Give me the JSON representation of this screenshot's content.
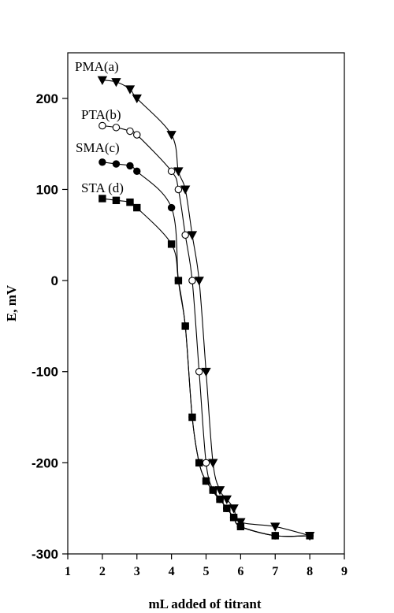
{
  "chart_data": {
    "type": "scatter",
    "xlabel": "mL added of titrant",
    "ylabel": "E, mV",
    "xlim": [
      1,
      9
    ],
    "ylim": [
      -300,
      250
    ],
    "x_ticks": [
      1,
      2,
      3,
      4,
      5,
      6,
      7,
      8,
      9
    ],
    "y_ticks": [
      -300,
      -200,
      -100,
      0,
      100,
      200
    ],
    "grid": false,
    "series": [
      {
        "name": "PMA(a)",
        "marker": "triangle-down-filled",
        "color": "#000000",
        "x": [
          2.0,
          2.4,
          2.8,
          3.0,
          4.0,
          4.2,
          4.4,
          4.6,
          4.8,
          5.0,
          5.2,
          5.4,
          5.6,
          5.8,
          6.0,
          7.0,
          8.0
        ],
        "y": [
          220,
          218,
          210,
          200,
          160,
          120,
          100,
          50,
          0,
          -100,
          -200,
          -230,
          -240,
          -250,
          -265,
          -270,
          -280
        ]
      },
      {
        "name": "PTA(b)",
        "marker": "circle-open",
        "color": "#000000",
        "x": [
          2.0,
          2.4,
          2.8,
          3.0,
          4.0,
          4.2,
          4.4,
          4.6,
          4.8,
          5.0,
          5.2,
          5.4,
          5.6,
          5.8,
          6.0,
          7.0,
          8.0
        ],
        "y": [
          170,
          168,
          164,
          160,
          120,
          100,
          50,
          0,
          -100,
          -200,
          -230,
          -240,
          -250,
          -260,
          -270,
          -280,
          -280
        ]
      },
      {
        "name": "SMA(c)",
        "marker": "circle-filled",
        "color": "#000000",
        "x": [
          2.0,
          2.4,
          2.8,
          3.0,
          4.0,
          4.2,
          4.4,
          4.6,
          4.8,
          5.0,
          5.2,
          5.4,
          5.6,
          5.8,
          6.0,
          7.0,
          8.0
        ],
        "y": [
          130,
          128,
          126,
          120,
          80,
          0,
          -50,
          -150,
          -200,
          -220,
          -230,
          -240,
          -250,
          -260,
          -270,
          -280,
          -280
        ]
      },
      {
        "name": "STA (d)",
        "marker": "square-filled",
        "color": "#000000",
        "x": [
          2.0,
          2.4,
          2.8,
          3.0,
          4.0,
          4.2,
          4.4,
          4.6,
          4.8,
          5.0,
          5.2,
          5.4,
          5.6,
          5.8,
          6.0,
          7.0,
          8.0
        ],
        "y": [
          90,
          88,
          86,
          80,
          40,
          0,
          -50,
          -150,
          -200,
          -220,
          -230,
          -240,
          -250,
          -260,
          -270,
          -280,
          -280
        ]
      }
    ]
  }
}
